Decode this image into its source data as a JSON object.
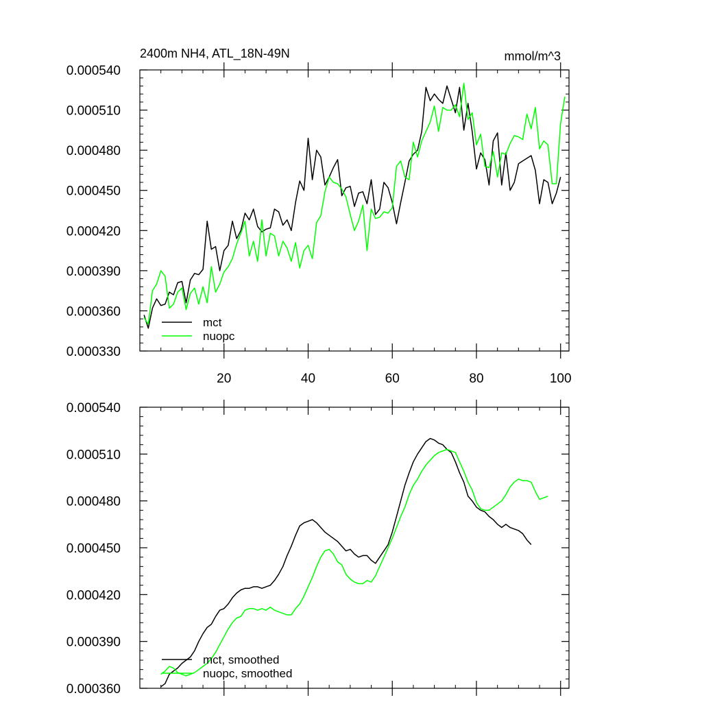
{
  "colors": {
    "mct": "#000000",
    "nuopc": "#00ff00",
    "axis": "#000000"
  },
  "chart_data": [
    {
      "type": "line",
      "title_left": "2400m NH4, ATL_18N-49N",
      "title_right": "mmol/m^3",
      "xlabel": "",
      "ylabel": "",
      "xlim": [
        0,
        102
      ],
      "ylim": [
        0.00033,
        0.00054
      ],
      "x_ticks": [
        20,
        40,
        60,
        80,
        100
      ],
      "x_tick_labels": [
        "20",
        "40",
        "60",
        "80",
        "100"
      ],
      "y_ticks": [
        0.00033,
        0.00036,
        0.00039,
        0.00042,
        0.00045,
        0.00048,
        0.00051,
        0.00054
      ],
      "y_tick_labels": [
        "0.000330",
        "0.000360",
        "0.000390",
        "0.000420",
        "0.000450",
        "0.000480",
        "0.000510",
        "0.000540"
      ],
      "legend": {
        "placement": "bottom-left",
        "entries": [
          "mct",
          "nuopc"
        ]
      },
      "x_start": 1,
      "series": [
        {
          "name": "mct",
          "values": [
            0.000357,
            0.000347,
            0.000362,
            0.000369,
            0.000364,
            0.000365,
            0.000374,
            0.000372,
            0.000381,
            0.000382,
            0.000366,
            0.000383,
            0.000388,
            0.000387,
            0.000391,
            0.000427,
            0.000406,
            0.000408,
            0.00039,
            0.000405,
            0.000409,
            0.000427,
            0.000414,
            0.00042,
            0.000433,
            0.000428,
            0.000436,
            0.000423,
            0.000419,
            0.000421,
            0.000422,
            0.000436,
            0.000434,
            0.000424,
            0.000428,
            0.00042,
            0.000441,
            0.000457,
            0.00045,
            0.000489,
            0.000458,
            0.00048,
            0.000475,
            0.000454,
            0.00046,
            0.000467,
            0.000473,
            0.000446,
            0.000452,
            0.000453,
            0.000438,
            0.000448,
            0.000449,
            0.00044,
            0.000458,
            0.000432,
            0.000436,
            0.000456,
            0.000452,
            0.000441,
            0.000425,
            0.000441,
            0.000456,
            0.000472,
            0.000477,
            0.00048,
            0.000494,
            0.000527,
            0.000517,
            0.000522,
            0.000518,
            0.000515,
            0.000528,
            0.000518,
            0.000508,
            0.000527,
            0.000495,
            0.000515,
            0.000494,
            0.000466,
            0.000478,
            0.000473,
            0.000454,
            0.000487,
            0.000493,
            0.000454,
            0.000478,
            0.00045,
            0.000456,
            0.00047,
            0.000472,
            0.000474,
            0.000476,
            0.000465,
            0.00044,
            0.000458,
            0.000456,
            0.00044,
            0.000448,
            0.00046
          ]
        },
        {
          "name": "nuopc",
          "values": [
            0.000355,
            0.00035,
            0.000375,
            0.00038,
            0.00039,
            0.000386,
            0.000362,
            0.000365,
            0.000374,
            0.000377,
            0.000361,
            0.000373,
            0.000377,
            0.000365,
            0.000378,
            0.000366,
            0.000393,
            0.000374,
            0.00038,
            0.000389,
            0.000393,
            0.000399,
            0.00041,
            0.000418,
            0.000427,
            0.000401,
            0.000412,
            0.000397,
            0.000428,
            0.000401,
            0.000418,
            0.000416,
            0.000401,
            0.000412,
            0.000407,
            0.000397,
            0.000411,
            0.000392,
            0.000405,
            0.000409,
            0.000399,
            0.000426,
            0.000431,
            0.000449,
            0.00046,
            0.000456,
            0.000455,
            0.000451,
            0.000445,
            0.000432,
            0.00042,
            0.000427,
            0.000439,
            0.000405,
            0.000436,
            0.000429,
            0.00043,
            0.000434,
            0.000433,
            0.000437,
            0.000468,
            0.000472,
            0.00046,
            0.000458,
            0.000486,
            0.000475,
            0.000487,
            0.000494,
            0.000501,
            0.000513,
            0.000494,
            0.000512,
            0.00051,
            0.00051,
            0.000514,
            0.000505,
            0.00053,
            0.000503,
            0.000508,
            0.000484,
            0.000492,
            0.000468,
            0.000467,
            0.000479,
            0.00046,
            0.000478,
            0.000477,
            0.000485,
            0.000491,
            0.00049,
            0.000488,
            0.000507,
            0.000496,
            0.000512,
            0.000481,
            0.000487,
            0.000484,
            0.000455,
            0.000455,
            0.0005,
            0.00052
          ]
        }
      ]
    },
    {
      "type": "line",
      "title_left": "",
      "title_right": "",
      "xlabel": "",
      "ylabel": "",
      "xlim": [
        0,
        102
      ],
      "ylim": [
        0.00036,
        0.00054
      ],
      "x_ticks": [
        20,
        40,
        60,
        80,
        100
      ],
      "x_tick_labels": [],
      "y_ticks": [
        0.00036,
        0.00039,
        0.00042,
        0.00045,
        0.00048,
        0.00051,
        0.00054
      ],
      "y_tick_labels": [
        "0.000360",
        "0.000390",
        "0.000420",
        "0.000450",
        "0.000480",
        "0.000510",
        "0.000540"
      ],
      "legend": {
        "placement": "bottom-left",
        "entries": [
          "mct, smoothed",
          "nuopc, smoothed"
        ]
      },
      "x_start": 5,
      "series": [
        {
          "name": "mct, smoothed",
          "values": [
            0.000361,
            0.000363,
            0.000369,
            0.000371,
            0.000373,
            0.000376,
            0.000378,
            0.00038,
            0.000384,
            0.00039,
            0.000395,
            0.000399,
            0.000401,
            0.000406,
            0.00041,
            0.000411,
            0.000414,
            0.000418,
            0.000421,
            0.000423,
            0.000424,
            0.000424,
            0.000425,
            0.000425,
            0.000424,
            0.000425,
            0.000426,
            0.000429,
            0.000433,
            0.000438,
            0.000445,
            0.000451,
            0.000458,
            0.000464,
            0.000466,
            0.000467,
            0.000468,
            0.000466,
            0.000463,
            0.00046,
            0.000458,
            0.000456,
            0.000454,
            0.000451,
            0.000448,
            0.000449,
            0.000446,
            0.000444,
            0.000445,
            0.000445,
            0.000442,
            0.00044,
            0.000444,
            0.000448,
            0.000452,
            0.00046,
            0.00047,
            0.00048,
            0.00049,
            0.000498,
            0.000505,
            0.00051,
            0.000514,
            0.000518,
            0.00052,
            0.000519,
            0.000517,
            0.000516,
            0.000513,
            0.000511,
            0.000505,
            0.000498,
            0.000492,
            0.000483,
            0.00048,
            0.000476,
            0.000474,
            0.000473,
            0.00047,
            0.000468,
            0.000465,
            0.000463,
            0.000465,
            0.000463,
            0.000462,
            0.000461,
            0.000459,
            0.000455,
            0.000452
          ]
        },
        {
          "name": "nuopc, smoothed",
          "values": [
            0.000369,
            0.000371,
            0.000374,
            0.000373,
            0.00037,
            0.000369,
            0.000368,
            0.000369,
            0.00037,
            0.000372,
            0.000374,
            0.000376,
            0.000379,
            0.000383,
            0.000388,
            0.000393,
            0.000398,
            0.000402,
            0.000405,
            0.000406,
            0.00041,
            0.000411,
            0.000411,
            0.00041,
            0.000411,
            0.00041,
            0.000412,
            0.00041,
            0.000409,
            0.000408,
            0.000407,
            0.000407,
            0.000411,
            0.000414,
            0.000419,
            0.000425,
            0.000431,
            0.000438,
            0.000444,
            0.000448,
            0.000449,
            0.000446,
            0.000441,
            0.000439,
            0.000433,
            0.00043,
            0.000428,
            0.000427,
            0.000427,
            0.000429,
            0.000428,
            0.000432,
            0.000438,
            0.000444,
            0.00045,
            0.000456,
            0.000463,
            0.00047,
            0.000476,
            0.000484,
            0.00049,
            0.000494,
            0.000499,
            0.000503,
            0.000506,
            0.000509,
            0.000511,
            0.000512,
            0.000513,
            0.000512,
            0.000511,
            0.000505,
            0.000499,
            0.000492,
            0.000487,
            0.000479,
            0.000475,
            0.000474,
            0.000474,
            0.000476,
            0.000478,
            0.00048,
            0.000484,
            0.000489,
            0.000492,
            0.000494,
            0.000493,
            0.000493,
            0.000492,
            0.000486,
            0.000481,
            0.000482,
            0.000483
          ]
        }
      ]
    }
  ]
}
